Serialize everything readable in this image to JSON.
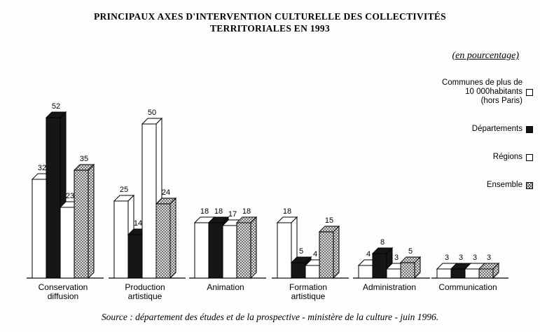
{
  "title": {
    "line1": "PRINCIPAUX AXES D'INTERVENTION CULTURELLE DES COLLECTIVITÉS",
    "line2": "TERRITORIALES EN 1993"
  },
  "subtitle": "(en pourcentage)",
  "legend": {
    "items": [
      {
        "lines": [
          "Communes de plus de",
          "10 000habitants",
          "(hors Paris)"
        ],
        "swatch": "white"
      },
      {
        "lines": [
          "Départements"
        ],
        "swatch": "black"
      },
      {
        "lines": [
          "Régions"
        ],
        "swatch": "white"
      },
      {
        "lines": [
          "Ensemble"
        ],
        "swatch": "crosshatch"
      }
    ]
  },
  "source": "Source : département des études et de la prospective - ministère de la culture - juin 1996.",
  "chart_data": {
    "type": "bar",
    "categories": [
      "Conservation\ndiffusion",
      "Production\nartistique",
      "Animation",
      "Formation\nartistique",
      "Administration",
      "Communication"
    ],
    "series": [
      {
        "name": "Communes de plus de 10 000 habitants (hors Paris)",
        "style": "white",
        "values": [
          32,
          25,
          18,
          18,
          4,
          3
        ]
      },
      {
        "name": "Départements",
        "style": "black",
        "values": [
          52,
          14,
          18,
          5,
          8,
          3
        ]
      },
      {
        "name": "Régions",
        "style": "white",
        "values": [
          23,
          50,
          17,
          4,
          3,
          3
        ]
      },
      {
        "name": "Ensemble",
        "style": "crosshatch",
        "values": [
          35,
          24,
          18,
          15,
          5,
          3
        ]
      }
    ],
    "unit": "percent",
    "ylim": [
      0,
      55
    ],
    "grid": false,
    "legend_position": "right"
  }
}
